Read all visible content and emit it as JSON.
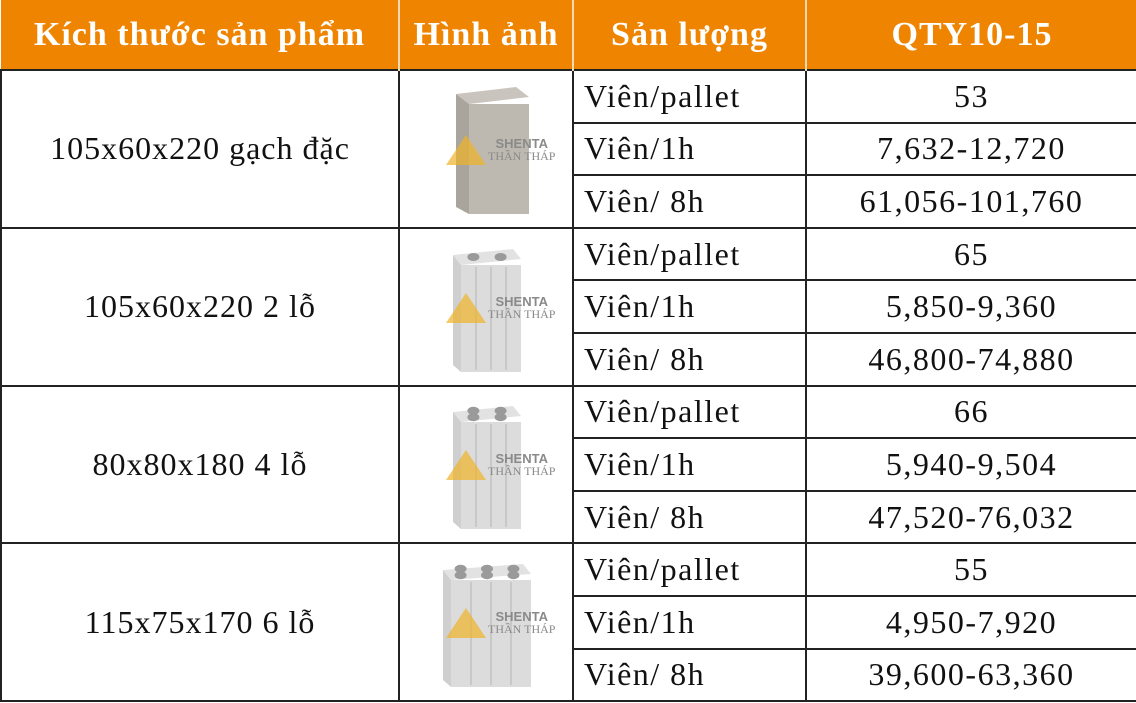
{
  "header": [
    "Kích thước sản phẩm",
    "Hình ảnh",
    "Sản lượng",
    "QTY10-15"
  ],
  "watermark": {
    "line1": "SHENTA",
    "line2": "THẦN THÁP"
  },
  "accent": "#ef8400",
  "products": [
    {
      "size": "105x60x220 gạch đặc",
      "image": "solid-brick",
      "holes": 0,
      "rows": [
        {
          "unit": "Viên/pallet",
          "value": "53"
        },
        {
          "unit": "Viên/1h",
          "value": "7,632-12,720"
        },
        {
          "unit": "Viên/ 8h",
          "value": "61,056-101,760"
        }
      ]
    },
    {
      "size": "105x60x220  2 lỗ",
      "image": "2-hole-brick",
      "holes": 2,
      "rows": [
        {
          "unit": "Viên/pallet",
          "value": "65"
        },
        {
          "unit": "Viên/1h",
          "value": "5,850-9,360"
        },
        {
          "unit": "Viên/ 8h",
          "value": "46,800-74,880"
        }
      ]
    },
    {
      "size": "80x80x180  4 lỗ",
      "image": "4-hole-brick",
      "holes": 4,
      "rows": [
        {
          "unit": "Viên/pallet",
          "value": "66"
        },
        {
          "unit": "Viên/1h",
          "value": "5,940-9,504"
        },
        {
          "unit": "Viên/ 8h",
          "value": "47,520-76,032"
        }
      ]
    },
    {
      "size": "115x75x170  6 lỗ",
      "image": "6-hole-brick",
      "holes": 6,
      "rows": [
        {
          "unit": "Viên/pallet",
          "value": "55"
        },
        {
          "unit": "Viên/1h",
          "value": "4,950-7,920"
        },
        {
          "unit": "Viên/ 8h",
          "value": "39,600-63,360"
        }
      ]
    }
  ]
}
